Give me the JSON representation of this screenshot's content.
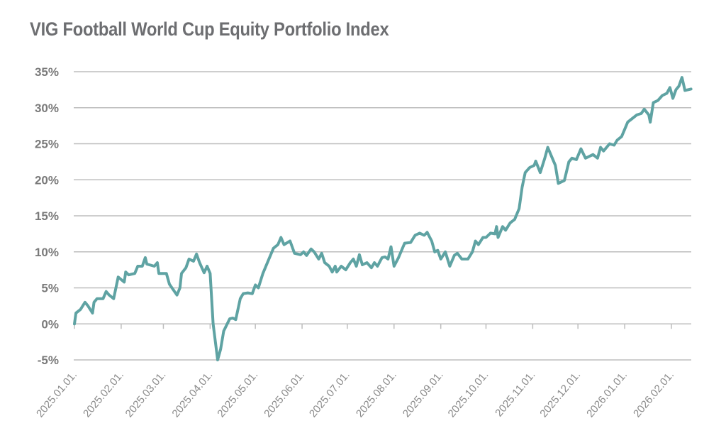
{
  "chart_data": {
    "type": "line",
    "title": "VIG Football World Cup Equity Portfolio Index",
    "xlabel": "",
    "ylabel": "",
    "ylim": [
      -5,
      35
    ],
    "y_ticks": [
      "-5%",
      "0%",
      "5%",
      "10%",
      "15%",
      "20%",
      "25%",
      "30%",
      "35%"
    ],
    "y_tick_values": [
      -5,
      0,
      5,
      10,
      15,
      20,
      25,
      30,
      35
    ],
    "x_ticks": [
      "2025.01.01.",
      "2025.02.01.",
      "2025.03.01.",
      "2025.04.01.",
      "2025.05.01.",
      "2025.06.01.",
      "2025.07.01.",
      "2025.08.01.",
      "2025.09.01.",
      "2025.10.01.",
      "2025.11.01.",
      "2025.12.01.",
      "2026.01.01.",
      "2026.02.01."
    ],
    "x_tick_dates": [
      "2025-01-01",
      "2025-02-01",
      "2025-03-01",
      "2025-04-01",
      "2025-05-01",
      "2025-06-01",
      "2025-07-01",
      "2025-08-01",
      "2025-09-01",
      "2025-10-01",
      "2025-11-01",
      "2025-12-01",
      "2026-01-01",
      "2026-02-01"
    ],
    "grid": "horizontal",
    "line_color": "#5fa3a3",
    "series": [
      {
        "x": [
          "2025-01-01",
          "2025-01-02",
          "2025-01-05",
          "2025-01-08",
          "2025-01-10",
          "2025-01-13",
          "2025-01-14",
          "2025-01-16",
          "2025-01-20",
          "2025-01-22",
          "2025-01-24",
          "2025-01-27",
          "2025-01-30",
          "2025-02-03",
          "2025-02-04",
          "2025-02-06",
          "2025-02-10",
          "2025-02-12",
          "2025-02-15",
          "2025-02-17",
          "2025-02-18",
          "2025-02-23",
          "2025-02-25",
          "2025-02-26",
          "2025-03-03",
          "2025-03-05",
          "2025-03-10",
          "2025-03-12",
          "2025-03-13",
          "2025-03-16",
          "2025-03-18",
          "2025-03-21",
          "2025-03-23",
          "2025-03-25",
          "2025-03-28",
          "2025-03-30",
          "2025-04-01",
          "2025-04-03",
          "2025-04-06",
          "2025-04-08",
          "2025-04-10",
          "2025-04-14",
          "2025-04-16",
          "2025-04-18",
          "2025-04-21",
          "2025-04-23",
          "2025-04-26",
          "2025-04-29",
          "2025-05-01",
          "2025-05-03",
          "2025-05-06",
          "2025-05-10",
          "2025-05-13",
          "2025-05-16",
          "2025-05-18",
          "2025-05-20",
          "2025-05-24",
          "2025-05-27",
          "2025-05-31",
          "2025-06-02",
          "2025-06-04",
          "2025-06-07",
          "2025-06-09",
          "2025-06-12",
          "2025-06-14",
          "2025-06-16",
          "2025-06-19",
          "2025-06-21",
          "2025-06-23",
          "2025-06-24",
          "2025-06-27",
          "2025-06-30",
          "2025-07-03",
          "2025-07-05",
          "2025-07-07",
          "2025-07-09",
          "2025-07-11",
          "2025-07-14",
          "2025-07-17",
          "2025-07-19",
          "2025-07-21",
          "2025-07-24",
          "2025-07-26",
          "2025-07-28",
          "2025-07-30",
          "2025-08-01",
          "2025-08-04",
          "2025-08-08",
          "2025-08-12",
          "2025-08-15",
          "2025-08-18",
          "2025-08-21",
          "2025-08-23",
          "2025-08-26",
          "2025-08-28",
          "2025-08-30",
          "2025-09-01",
          "2025-09-04",
          "2025-09-07",
          "2025-09-10",
          "2025-09-12",
          "2025-09-15",
          "2025-09-19",
          "2025-09-22",
          "2025-09-24",
          "2025-09-26",
          "2025-09-29",
          "2025-10-01",
          "2025-10-04",
          "2025-10-07",
          "2025-10-08",
          "2025-10-09",
          "2025-10-12",
          "2025-10-14",
          "2025-10-17",
          "2025-10-20",
          "2025-10-23",
          "2025-10-25",
          "2025-10-27",
          "2025-10-30",
          "2025-11-02",
          "2025-11-03",
          "2025-11-06",
          "2025-11-09",
          "2025-11-11",
          "2025-11-14",
          "2025-11-16",
          "2025-11-18",
          "2025-11-22",
          "2025-11-25",
          "2025-11-27",
          "2025-11-30",
          "2025-12-03",
          "2025-12-06",
          "2025-12-08",
          "2025-12-11",
          "2025-12-14",
          "2025-12-16",
          "2025-12-18",
          "2025-12-22",
          "2025-12-25",
          "2025-12-27",
          "2025-12-30",
          "2026-01-01",
          "2026-01-03",
          "2026-01-06",
          "2026-01-09",
          "2026-01-12",
          "2026-01-14",
          "2026-01-17",
          "2026-01-18",
          "2026-01-20",
          "2026-01-23",
          "2026-01-26",
          "2026-01-29",
          "2026-01-31",
          "2026-02-02",
          "2026-02-04",
          "2026-02-06",
          "2026-02-08",
          "2026-02-10",
          "2026-02-14"
        ],
        "y": [
          0,
          1.5,
          2,
          3,
          2.5,
          1.5,
          3,
          3.5,
          3.5,
          4.5,
          4,
          3.5,
          6.5,
          5.8,
          7.2,
          6.8,
          7,
          8,
          8,
          9.2,
          8.3,
          8,
          8.5,
          7,
          7,
          5.5,
          4,
          5,
          7,
          7.8,
          9,
          8.7,
          9.7,
          8.5,
          7.1,
          8,
          7,
          0,
          -5,
          -3.5,
          -1,
          0.7,
          0.8,
          0.6,
          3.5,
          4.2,
          4.3,
          4.2,
          5.4,
          5,
          7,
          9,
          10.5,
          11,
          12,
          11,
          11.5,
          9.8,
          9.6,
          10,
          9.5,
          10.4,
          10,
          9,
          9.8,
          8.5,
          8,
          7.2,
          8,
          7.2,
          8,
          7.5,
          8.5,
          9,
          8,
          9.6,
          8.2,
          8.5,
          7.8,
          8.5,
          8,
          9.2,
          9.3,
          9,
          10.7,
          8,
          9.2,
          11.2,
          11.3,
          12.3,
          12.6,
          12.3,
          12.7,
          11.5,
          10,
          10.2,
          9,
          10,
          8,
          9.5,
          9.8,
          9,
          9,
          10,
          11.5,
          11,
          12,
          12,
          12.6,
          12.5,
          13.5,
          12,
          13.5,
          13,
          14,
          14.5,
          16,
          19,
          21,
          21.7,
          22,
          22.6,
          21,
          23,
          24.5,
          23,
          22,
          19.5,
          19.9,
          22.5,
          23,
          22.8,
          24.3,
          23,
          23.2,
          23.5,
          23,
          24.5,
          24,
          25,
          24.8,
          25.5,
          26,
          27,
          28,
          28.5,
          29,
          29.2,
          29.8,
          29,
          28,
          30.7,
          31,
          31.7,
          32,
          32.8,
          31.3,
          32.5,
          33,
          34.2,
          32.4,
          32.6
        ]
      }
    ]
  }
}
